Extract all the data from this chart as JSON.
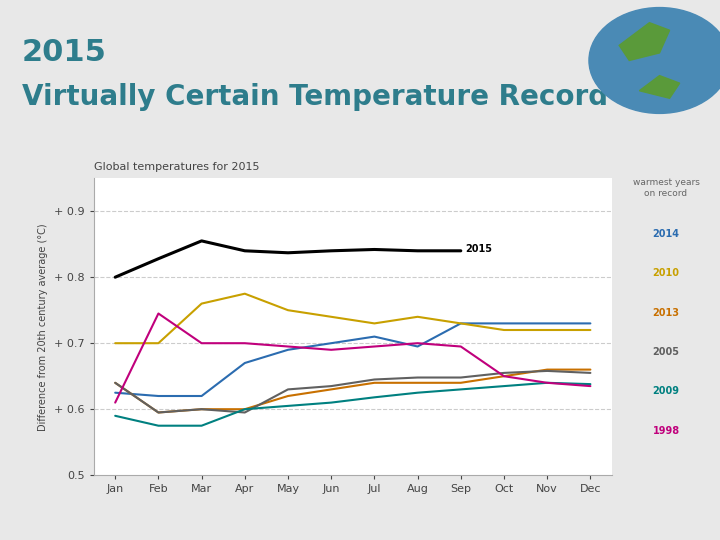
{
  "title_line1": "2015",
  "title_line2": "Virtually Certain Temperature Record",
  "chart_title": "Global temperatures for 2015",
  "ylabel": "Difference from 20th century average (°C)",
  "months": [
    "Jan",
    "Feb",
    "Mar",
    "Apr",
    "May",
    "Jun",
    "Jul",
    "Aug",
    "Sep",
    "Oct",
    "Nov",
    "Dec"
  ],
  "ylim": [
    0.5,
    0.95
  ],
  "yticks": [
    0.5,
    0.6,
    0.7,
    0.8,
    0.9
  ],
  "ytick_labels": [
    "0.5",
    "+ 0.6",
    "+ 0.7",
    "+ 0.8",
    "+ 0.9"
  ],
  "background_color": "#f0f0f0",
  "header_bg": "#ffffff",
  "series": {
    "2015": {
      "color": "#000000",
      "lw": 2.2,
      "data": [
        0.8,
        0.828,
        0.855,
        0.84,
        0.837,
        0.84,
        0.842,
        0.84,
        0.84,
        null,
        null,
        null
      ]
    },
    "2014": {
      "color": "#2b6cb0",
      "lw": 1.5,
      "data": [
        0.625,
        0.62,
        0.62,
        0.67,
        0.69,
        0.7,
        0.71,
        0.695,
        0.73,
        0.73,
        0.73,
        0.73
      ]
    },
    "2010": {
      "color": "#c8a000",
      "lw": 1.5,
      "data": [
        0.7,
        0.7,
        0.76,
        0.775,
        0.75,
        0.74,
        0.73,
        0.74,
        0.73,
        0.72,
        0.72,
        0.72
      ]
    },
    "2013": {
      "color": "#c87000",
      "lw": 1.5,
      "data": [
        0.64,
        0.595,
        0.6,
        0.6,
        0.62,
        0.63,
        0.64,
        0.64,
        0.64,
        0.65,
        0.66,
        0.66
      ]
    },
    "2005": {
      "color": "#606060",
      "lw": 1.5,
      "data": [
        0.64,
        0.595,
        0.6,
        0.595,
        0.63,
        0.635,
        0.645,
        0.648,
        0.648,
        0.655,
        0.658,
        0.655
      ]
    },
    "2009": {
      "color": "#008080",
      "lw": 1.5,
      "data": [
        0.59,
        0.575,
        0.575,
        0.6,
        0.605,
        0.61,
        0.618,
        0.625,
        0.63,
        0.635,
        0.64,
        0.638
      ]
    },
    "1998": {
      "color": "#c0007c",
      "lw": 1.5,
      "data": [
        0.61,
        0.745,
        0.7,
        0.7,
        0.695,
        0.69,
        0.695,
        0.7,
        0.695,
        0.65,
        0.64,
        0.635
      ]
    }
  },
  "title_color": "#2e7d8c",
  "chart_bg": "#ffffff",
  "grid_color": "#cccccc",
  "label_fontsize": 8,
  "axis_label_fontsize": 7
}
